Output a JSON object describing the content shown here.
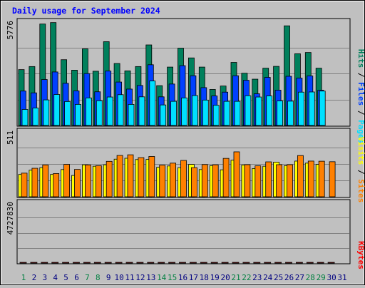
{
  "chart_data": {
    "type": "bar",
    "title": "Daily usage for September 2024",
    "days": [
      "1",
      "2",
      "3",
      "4",
      "5",
      "6",
      "7",
      "8",
      "9",
      "10",
      "11",
      "12",
      "13",
      "14",
      "15",
      "16",
      "17",
      "18",
      "19",
      "20",
      "21",
      "22",
      "23",
      "24",
      "25",
      "26",
      "27",
      "28",
      "29",
      "30",
      "31"
    ],
    "weekend_days": [
      "1",
      "7",
      "8",
      "14",
      "15",
      "21",
      "22",
      "28",
      "29"
    ],
    "ylabels": {
      "top_max": "5776",
      "mid_max": "511",
      "bot_max": "4727830"
    },
    "legend": {
      "pages": "Pages",
      "files": "Files",
      "hits": "Hits",
      "sites": "Sites",
      "visits": "Visits",
      "kbytes": "KBytes",
      "sep": " / "
    },
    "colors": {
      "hits": "#00805c",
      "files": "#0040ff",
      "pages": "#00e0ff",
      "visits": "#ffff00",
      "sites": "#ff8000",
      "kbytes": "#ff0000",
      "title": "#0000ff",
      "weekday": "#000080",
      "weekend": "#008040"
    },
    "ranges": {
      "top": [
        0,
        5776
      ],
      "mid": [
        0,
        511
      ],
      "bot": [
        0,
        4727830
      ]
    },
    "series": {
      "hits": [
        3100,
        3270,
        5630,
        5710,
        3650,
        3070,
        4250,
        3010,
        4650,
        3440,
        3030,
        3270,
        4470,
        2210,
        3240,
        4290,
        3750,
        3240,
        2000,
        2190,
        3500,
        2900,
        2570,
        3180,
        3280,
        5530,
        3980,
        4050,
        3180,
        0,
        0
      ],
      "files": [
        1910,
        1810,
        2550,
        2970,
        2340,
        1920,
        2880,
        1870,
        3020,
        2410,
        2020,
        2220,
        3370,
        1590,
        2300,
        3320,
        2760,
        2100,
        1640,
        1850,
        2760,
        2510,
        1760,
        2670,
        1960,
        2730,
        2630,
        2750,
        1960,
        0,
        0
      ],
      "pages": [
        890,
        970,
        1420,
        1720,
        1330,
        1170,
        1530,
        1370,
        1580,
        1710,
        1170,
        1590,
        2470,
        1140,
        1340,
        1530,
        1660,
        1410,
        1120,
        1340,
        1340,
        1650,
        1580,
        1640,
        1360,
        1350,
        1850,
        1860,
        1910,
        0,
        0
      ],
      "visits": [
        174,
        207,
        227,
        174,
        212,
        166,
        249,
        238,
        249,
        293,
        300,
        290,
        291,
        230,
        240,
        227,
        252,
        212,
        242,
        210,
        285,
        247,
        220,
        238,
        270,
        242,
        278,
        262,
        252,
        0,
        0
      ],
      "sites": [
        184,
        222,
        248,
        181,
        252,
        213,
        248,
        242,
        276,
        322,
        327,
        305,
        314,
        246,
        262,
        283,
        227,
        251,
        249,
        299,
        350,
        250,
        241,
        272,
        250,
        250,
        321,
        278,
        277,
        273,
        0
      ],
      "kbytes": [
        3910,
        2830,
        4270,
        2750,
        2220,
        1910,
        2180,
        1910,
        4700,
        3120,
        1650,
        3450,
        2180,
        1380,
        2180,
        3560,
        2180,
        2830,
        800,
        800,
        2750,
        2180,
        1460,
        2180,
        2290,
        1910,
        4590,
        2180,
        2180,
        830,
        0
      ]
    }
  }
}
